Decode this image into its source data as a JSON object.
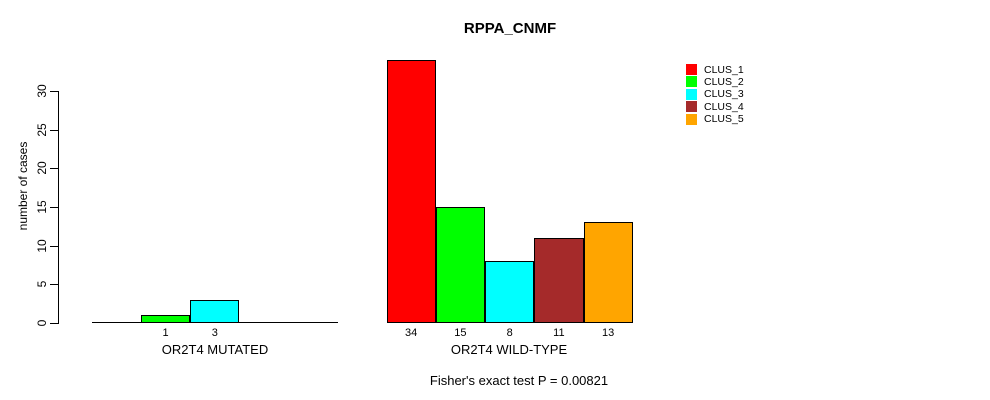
{
  "title": "RPPA_CNMF",
  "y_axis": {
    "label": "number of cases",
    "ticks": [
      0,
      5,
      10,
      15,
      20,
      25,
      30
    ]
  },
  "footer": "Fisher's exact test P = 0.00821",
  "legend": {
    "items": [
      {
        "label": "CLUS_1",
        "color": "#ff0000"
      },
      {
        "label": "CLUS_2",
        "color": "#00ff00"
      },
      {
        "label": "CLUS_3",
        "color": "#00ffff"
      },
      {
        "label": "CLUS_4",
        "color": "#a52a2a"
      },
      {
        "label": "CLUS_5",
        "color": "#ffa500"
      }
    ]
  },
  "chart_data": {
    "type": "bar",
    "title": "RPPA_CNMF",
    "ylabel": "number of cases",
    "ylim": [
      0,
      34
    ],
    "y_ticks": [
      0,
      5,
      10,
      15,
      20,
      25,
      30
    ],
    "grid": false,
    "legend_position": "top-right",
    "series_names": [
      "CLUS_1",
      "CLUS_2",
      "CLUS_3",
      "CLUS_4",
      "CLUS_5"
    ],
    "series_colors": [
      "#ff0000",
      "#00ff00",
      "#00ffff",
      "#a52a2a",
      "#ffa500"
    ],
    "groups": [
      {
        "label": "OR2T4 MUTATED",
        "values": [
          0,
          1,
          3,
          0,
          0
        ]
      },
      {
        "label": "OR2T4 WILD-TYPE",
        "values": [
          34,
          15,
          8,
          11,
          13
        ]
      }
    ],
    "annotation": "Fisher's exact test P = 0.00821",
    "bar_border_color": "#000000"
  }
}
